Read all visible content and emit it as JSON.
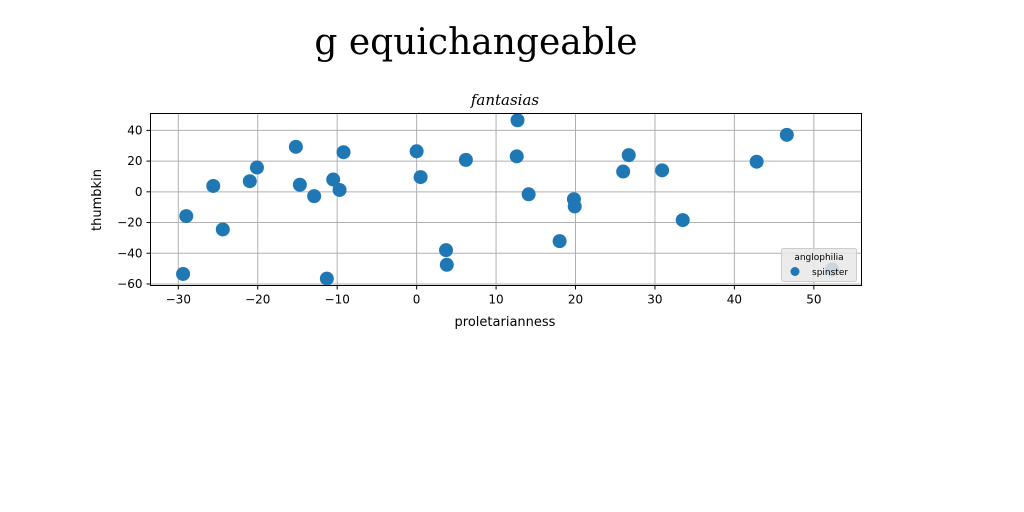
{
  "suptitle": "g equichangeable",
  "chart_data": {
    "type": "scatter",
    "title": "fantasias",
    "xlabel": "proletarianness",
    "ylabel": "thumbkin",
    "xlim": [
      -33.5,
      56
    ],
    "ylim": [
      -61,
      51
    ],
    "xticks": [
      -30,
      -20,
      -10,
      0,
      10,
      20,
      30,
      40,
      50
    ],
    "yticks": [
      -60,
      -40,
      -20,
      0,
      20,
      40
    ],
    "grid": true,
    "legend": {
      "title": "anglophilia",
      "placement": "lower-right"
    },
    "series": [
      {
        "name": "spinster",
        "color": "#1f77b4",
        "points": [
          {
            "x": -29.4,
            "y": -53.5
          },
          {
            "x": -29.0,
            "y": -15.8
          },
          {
            "x": -25.6,
            "y": 3.8
          },
          {
            "x": -24.4,
            "y": -24.5
          },
          {
            "x": -21.0,
            "y": 6.9
          },
          {
            "x": -20.1,
            "y": 15.8
          },
          {
            "x": -15.2,
            "y": 29.3
          },
          {
            "x": -14.7,
            "y": 4.6
          },
          {
            "x": -12.9,
            "y": -2.8
          },
          {
            "x": -11.3,
            "y": -56.5
          },
          {
            "x": -10.5,
            "y": 8.0
          },
          {
            "x": -9.7,
            "y": 1.2
          },
          {
            "x": -9.2,
            "y": 25.8
          },
          {
            "x": 0.0,
            "y": 26.4
          },
          {
            "x": 0.5,
            "y": 9.6
          },
          {
            "x": 3.7,
            "y": -38.0
          },
          {
            "x": 3.8,
            "y": -47.5
          },
          {
            "x": 6.2,
            "y": 20.8
          },
          {
            "x": 12.6,
            "y": 23.1
          },
          {
            "x": 12.7,
            "y": 46.6
          },
          {
            "x": 14.1,
            "y": -1.6
          },
          {
            "x": 18.0,
            "y": -32.1
          },
          {
            "x": 19.8,
            "y": -4.8
          },
          {
            "x": 19.9,
            "y": -9.5
          },
          {
            "x": 26.0,
            "y": 13.2
          },
          {
            "x": 26.7,
            "y": 23.9
          },
          {
            "x": 30.9,
            "y": 14.0
          },
          {
            "x": 33.5,
            "y": -18.4
          },
          {
            "x": 42.8,
            "y": 19.6
          },
          {
            "x": 46.6,
            "y": 37.1
          },
          {
            "x": 52.3,
            "y": -50.5
          }
        ]
      }
    ]
  }
}
